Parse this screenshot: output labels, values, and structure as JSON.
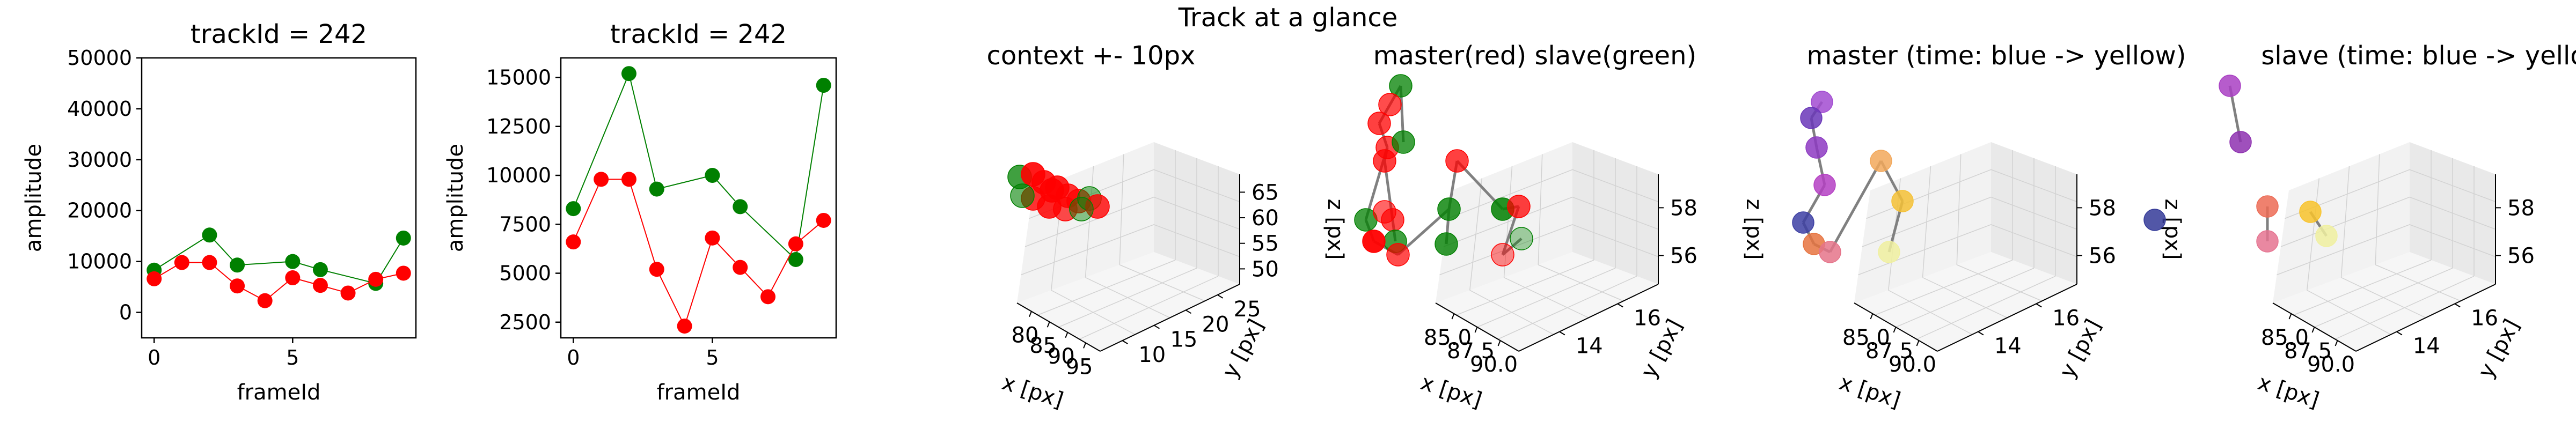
{
  "suptitle": "Track at a glance",
  "chart_data": [
    {
      "type": "line",
      "title": "trackId = 242",
      "xlabel": "frameId",
      "ylabel": "amplitude",
      "xlim": [
        -0.45,
        9.45
      ],
      "ylim": [
        -5000,
        50000
      ],
      "xticks": [
        "0",
        "5"
      ],
      "yticks": [
        "0",
        "10000",
        "20000",
        "30000",
        "40000",
        "50000"
      ],
      "series": [
        {
          "color": "#008000",
          "x": [
            0,
            2,
            3,
            5,
            6,
            8,
            9
          ],
          "y": [
            8300,
            15200,
            9300,
            10000,
            8400,
            5700,
            14600
          ]
        },
        {
          "color": "#ff0000",
          "x": [
            0,
            1,
            2,
            3,
            4,
            5,
            6,
            7,
            8,
            9
          ],
          "y": [
            6600,
            9800,
            9800,
            5200,
            2300,
            6800,
            5300,
            3800,
            6500,
            7700
          ]
        }
      ]
    },
    {
      "type": "line",
      "title": "trackId = 242",
      "xlabel": "frameId",
      "ylabel": "amplitude",
      "xlim": [
        -0.45,
        9.45
      ],
      "ylim": [
        1700,
        16000
      ],
      "xticks": [
        "0",
        "5"
      ],
      "yticks": [
        "2500",
        "5000",
        "7500",
        "10000",
        "12500",
        "15000"
      ],
      "series": [
        {
          "color": "#008000",
          "x": [
            0,
            2,
            3,
            5,
            6,
            8,
            9
          ],
          "y": [
            8300,
            15200,
            9300,
            10000,
            8400,
            5700,
            14600
          ]
        },
        {
          "color": "#ff0000",
          "x": [
            0,
            1,
            2,
            3,
            4,
            5,
            6,
            7,
            8,
            9
          ],
          "y": [
            6600,
            9800,
            9800,
            5200,
            2300,
            6800,
            5300,
            3800,
            6500,
            7700
          ]
        }
      ]
    },
    {
      "type": "scatter",
      "title": "context +- 10px",
      "xlabel": "x [px]",
      "ylabel": "y [px]",
      "zlabel": "z [px]",
      "xticks": [
        "80",
        "85",
        "90",
        "95"
      ],
      "yticks": [
        "10",
        "15",
        "20",
        "25"
      ],
      "zticks": [
        "50",
        "55",
        "60",
        "65"
      ]
    },
    {
      "type": "scatter",
      "title": "master(red) slave(green)",
      "xlabel": "x [px]",
      "ylabel": "y [px]",
      "zlabel": "z [px]",
      "xticks": [
        "85.0",
        "87.5",
        "90.0"
      ],
      "yticks": [
        "14",
        "16"
      ],
      "zticks": [
        "56",
        "58"
      ]
    },
    {
      "type": "scatter",
      "title": "master (time: blue -> yellow)",
      "xlabel": "x [px]",
      "ylabel": "y [px]",
      "zlabel": "z [px]",
      "xticks": [
        "85.0",
        "87.5",
        "90.0"
      ],
      "yticks": [
        "14",
        "16"
      ],
      "zticks": [
        "56",
        "58"
      ]
    },
    {
      "type": "scatter",
      "title": "slave (time: blue -> yellow)",
      "xlabel": "x [px]",
      "ylabel": "y [px]",
      "zlabel": "z [px]",
      "xticks": [
        "85.0",
        "87.5",
        "90.0"
      ],
      "yticks": [
        "14",
        "16"
      ],
      "zticks": [
        "56",
        "58"
      ]
    }
  ]
}
